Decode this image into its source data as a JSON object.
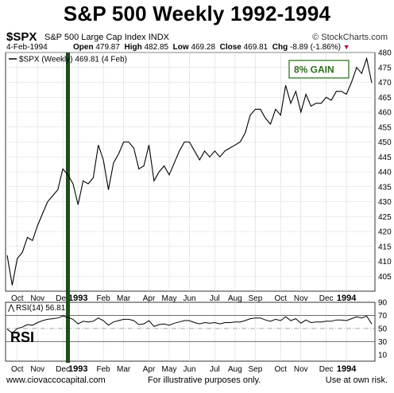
{
  "title": "S&P 500 Weekly 1992-1994",
  "header": {
    "symbol": "$SPX",
    "description": "S&P 500 Large Cap Index",
    "exchange": "INDX",
    "credit": "© StockCharts.com",
    "date": "4-Feb-1994",
    "open_label": "Open",
    "open": "479.87",
    "high_label": "High",
    "high": "482.85",
    "low_label": "Low",
    "low": "469.28",
    "close_label": "Close",
    "close": "469.81",
    "chg_label": "Chg",
    "chg": "-8.89 (-1.86%)",
    "chg_arrow": "▼"
  },
  "footer": {
    "left": "www.ciovaccocapital.com",
    "middle": "For illustrative purposes only.",
    "right": "Use at own risk."
  },
  "colors": {
    "line": "#000000",
    "marker": "#1e4d1e",
    "gain_text": "#2e6b1a",
    "gain_border": "#4a8a3a",
    "grid": "#d9d9d9"
  },
  "chart_data": [
    {
      "type": "line",
      "legend": "$SPX (Weekly) 469.81 (4 Feb)",
      "ylim": [
        400,
        480
      ],
      "yticks": [
        405,
        410,
        415,
        420,
        425,
        430,
        435,
        440,
        445,
        450,
        455,
        460,
        465,
        470,
        475,
        480
      ],
      "x_labels": [
        "Oct",
        "Nov",
        "Dec",
        "1993",
        "Feb",
        "Mar",
        "Apr",
        "May",
        "Jun",
        "Jul",
        "Aug",
        "Sep",
        "Oct",
        "Nov",
        "Dec",
        "1994"
      ],
      "x_label_week": [
        2,
        6,
        11,
        14,
        19,
        23,
        28,
        32,
        36,
        41,
        45,
        49,
        54,
        58,
        63,
        67
      ],
      "values": [
        412,
        402,
        411,
        413,
        418,
        417,
        422,
        426,
        430,
        432,
        434,
        441,
        439,
        436,
        429,
        437,
        436,
        438,
        449,
        444,
        434,
        443,
        446,
        450,
        450,
        448,
        441,
        442,
        449,
        437,
        440,
        442,
        439,
        443,
        447,
        450,
        450,
        447,
        444,
        447,
        445,
        447,
        445,
        447,
        448,
        449,
        450,
        453,
        459,
        461,
        461,
        458,
        456,
        461,
        459,
        469,
        463,
        467,
        460,
        466,
        462,
        463,
        463,
        465,
        464,
        467,
        467,
        466,
        470,
        475,
        473,
        478,
        469.81
      ],
      "annotation": "8% GAIN",
      "marker_week": 12
    },
    {
      "type": "line",
      "legend": "RSI(14) 56.81",
      "label": "RSI",
      "ylim": [
        0,
        90
      ],
      "yticks": [
        10,
        30,
        50,
        70,
        90
      ],
      "reference_lines": [
        30,
        50,
        70
      ],
      "x_labels": [
        "Oct",
        "Nov",
        "Dec",
        "1993",
        "Feb",
        "Mar",
        "Apr",
        "May",
        "Jun",
        "Jul",
        "Aug",
        "Sep",
        "Oct",
        "Nov",
        "Dec",
        "1994"
      ],
      "x_label_week": [
        2,
        6,
        11,
        14,
        19,
        23,
        28,
        32,
        36,
        41,
        45,
        49,
        54,
        58,
        63,
        67
      ],
      "values": [
        49,
        43,
        50,
        52,
        56,
        55,
        59,
        62,
        64,
        65,
        66,
        69,
        67,
        64,
        57,
        61,
        60,
        61,
        66,
        62,
        55,
        60,
        62,
        64,
        64,
        62,
        56,
        57,
        62,
        53,
        56,
        57,
        55,
        58,
        60,
        62,
        62,
        59,
        57,
        59,
        58,
        59,
        57,
        59,
        59,
        60,
        60,
        62,
        65,
        66,
        66,
        63,
        61,
        64,
        62,
        68,
        62,
        65,
        58,
        63,
        59,
        60,
        60,
        61,
        61,
        63,
        63,
        62,
        65,
        68,
        66,
        69,
        56.81
      ]
    }
  ]
}
